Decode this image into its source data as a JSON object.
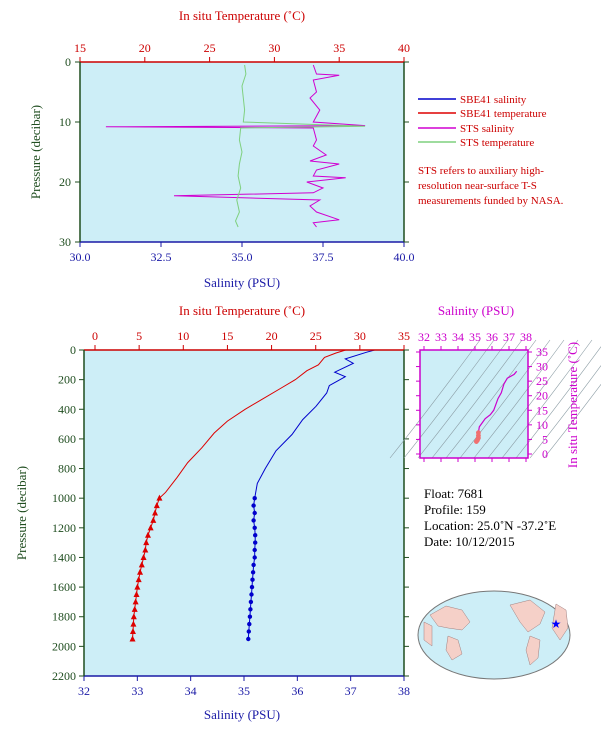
{
  "colors": {
    "plot_bg": "#cdeef7",
    "temperature_axis": "#cc0000",
    "salinity_axis": "#1a1aa6",
    "pressure_axis": "#1f4d1f",
    "sbe41_salinity": "#0000cc",
    "sbe41_temperature": "#dd0000",
    "sts_salinity": "#d000d0",
    "sts_temperature": "#7fd07f",
    "ts_axis": "#cc00cc"
  },
  "top_panel": {
    "temp_title": "In situ Temperature (˚C)",
    "sal_title": "Salinity (PSU)",
    "pres_title": "Pressure (decibar)",
    "temp_ticks": [
      "15",
      "20",
      "25",
      "30",
      "35",
      "40"
    ],
    "sal_ticks": [
      "30.0",
      "32.5",
      "35.0",
      "37.5",
      "40.0"
    ],
    "pres_ticks": [
      "0",
      "10",
      "20",
      "30"
    ],
    "legend": [
      {
        "label": "SBE41 salinity",
        "color": "#0000cc"
      },
      {
        "label": "SBE41 temperature",
        "color": "#dd0000"
      },
      {
        "label": "STS salinity",
        "color": "#d000d0"
      },
      {
        "label": "STS temperature",
        "color": "#7fd07f"
      }
    ],
    "note": "STS refers to auxiliary high-resolution near-surface T-S measurements funded by NASA."
  },
  "bottom_panel": {
    "temp_title": "In situ Temperature (˚C)",
    "sal_title": "Salinity (PSU)",
    "pres_title": "Pressure (decibar)",
    "temp_ticks": [
      "0",
      "5",
      "10",
      "15",
      "20",
      "25",
      "30",
      "35"
    ],
    "sal_ticks": [
      "32",
      "33",
      "34",
      "35",
      "36",
      "37",
      "38"
    ],
    "pres_ticks": [
      "0",
      "200",
      "400",
      "600",
      "800",
      "1000",
      "1200",
      "1400",
      "1600",
      "1800",
      "2000",
      "2200"
    ]
  },
  "ts_panel": {
    "sal_title": "Salinity (PSU)",
    "temp_title": "In situ Temperature (˚C)",
    "sal_ticks": [
      "32",
      "33",
      "34",
      "35",
      "36",
      "37",
      "38"
    ],
    "temp_ticks": [
      "0",
      "5",
      "10",
      "15",
      "20",
      "25",
      "30",
      "35"
    ]
  },
  "info": {
    "float": "Float:  7681",
    "profile": "Profile:  159",
    "location": "Location:  25.0˚N  -37.2˚E",
    "date": "Date:  10/12/2015"
  },
  "chart_data": [
    {
      "type": "line",
      "panel": "near-surface profile (0-30 dbar)",
      "ylabel": "Pressure (decibar)",
      "ylim": [
        30,
        0
      ],
      "x_top_label": "In situ Temperature (˚C)",
      "x_top_lim": [
        15,
        40
      ],
      "x_bottom_label": "Salinity (PSU)",
      "x_bottom_lim": [
        30.0,
        40.0
      ],
      "series": [
        {
          "name": "STS salinity",
          "axis": "salinity",
          "points": [
            [
              37.2,
              0.5
            ],
            [
              37.3,
              2
            ],
            [
              38.0,
              2.2
            ],
            [
              37.2,
              3
            ],
            [
              37.3,
              5
            ],
            [
              37.1,
              6
            ],
            [
              37.4,
              8
            ],
            [
              37.2,
              10
            ],
            [
              38.8,
              10.6
            ],
            [
              30.8,
              10.8
            ],
            [
              37.2,
              11
            ],
            [
              37.3,
              13
            ],
            [
              37.2,
              14
            ],
            [
              37.6,
              15.5
            ],
            [
              37.1,
              16.5
            ],
            [
              38.0,
              17
            ],
            [
              37.3,
              18
            ],
            [
              37.2,
              19
            ],
            [
              38.2,
              19.3
            ],
            [
              37.0,
              20
            ],
            [
              37.5,
              21
            ],
            [
              37.2,
              21.8
            ],
            [
              32.9,
              22.3
            ],
            [
              37.4,
              23
            ],
            [
              37.1,
              24
            ],
            [
              37.3,
              25
            ],
            [
              38.0,
              26.3
            ],
            [
              37.2,
              26.8
            ],
            [
              37.3,
              27.5
            ]
          ]
        },
        {
          "name": "STS temperature",
          "axis": "temperature",
          "points": [
            [
              27.7,
              0.5
            ],
            [
              27.8,
              2
            ],
            [
              27.5,
              4
            ],
            [
              27.6,
              6
            ],
            [
              27.7,
              8
            ],
            [
              27.6,
              10
            ],
            [
              37.0,
              10.7
            ],
            [
              27.4,
              11
            ],
            [
              27.3,
              13
            ],
            [
              27.5,
              15
            ],
            [
              27.3,
              17
            ],
            [
              27.2,
              19
            ],
            [
              27.4,
              21
            ],
            [
              27.1,
              23
            ],
            [
              27.3,
              25
            ],
            [
              27.0,
              26.5
            ],
            [
              27.2,
              27.5
            ]
          ]
        }
      ]
    },
    {
      "type": "line",
      "panel": "full-depth profile (0-2200 dbar)",
      "ylabel": "Pressure (decibar)",
      "ylim": [
        2200,
        0
      ],
      "x_top_label": "In situ Temperature (˚C)",
      "x_top_lim": [
        0,
        35
      ],
      "x_bottom_label": "Salinity (PSU)",
      "x_bottom_lim": [
        32,
        38
      ],
      "series": [
        {
          "name": "SBE41 salinity",
          "axis": "salinity",
          "marker": "circle",
          "points": [
            [
              37.45,
              0
            ],
            [
              37.3,
              15
            ],
            [
              36.9,
              60
            ],
            [
              37.05,
              90
            ],
            [
              36.7,
              150
            ],
            [
              36.9,
              180
            ],
            [
              36.6,
              240
            ],
            [
              36.55,
              290
            ],
            [
              36.35,
              380
            ],
            [
              36.1,
              470
            ],
            [
              35.9,
              570
            ],
            [
              35.6,
              680
            ],
            [
              35.4,
              800
            ],
            [
              35.25,
              900
            ],
            [
              35.2,
              1000
            ],
            [
              35.18,
              1050
            ],
            [
              35.2,
              1100
            ],
            [
              35.18,
              1150
            ],
            [
              35.2,
              1200
            ],
            [
              35.21,
              1250
            ],
            [
              35.21,
              1300
            ],
            [
              35.2,
              1350
            ],
            [
              35.2,
              1400
            ],
            [
              35.18,
              1450
            ],
            [
              35.17,
              1500
            ],
            [
              35.16,
              1550
            ],
            [
              35.15,
              1600
            ],
            [
              35.14,
              1650
            ],
            [
              35.13,
              1700
            ],
            [
              35.12,
              1750
            ],
            [
              35.11,
              1800
            ],
            [
              35.1,
              1850
            ],
            [
              35.09,
              1900
            ],
            [
              35.08,
              1950
            ]
          ]
        },
        {
          "name": "SBE41 temperature",
          "axis": "temperature",
          "marker": "triangle",
          "points": [
            [
              28.4,
              0
            ],
            [
              27.3,
              20
            ],
            [
              26.0,
              50
            ],
            [
              25.3,
              100
            ],
            [
              24.0,
              140
            ],
            [
              22.7,
              200
            ],
            [
              21.0,
              260
            ],
            [
              19.0,
              330
            ],
            [
              17.0,
              400
            ],
            [
              15.0,
              480
            ],
            [
              13.5,
              560
            ],
            [
              12.1,
              660
            ],
            [
              10.5,
              760
            ],
            [
              9.3,
              860
            ],
            [
              8.0,
              960
            ],
            [
              7.3,
              1000
            ],
            [
              7.0,
              1050
            ],
            [
              6.8,
              1100
            ],
            [
              6.6,
              1150
            ],
            [
              6.3,
              1200
            ],
            [
              6.0,
              1250
            ],
            [
              5.8,
              1300
            ],
            [
              5.7,
              1350
            ],
            [
              5.5,
              1400
            ],
            [
              5.3,
              1450
            ],
            [
              5.1,
              1500
            ],
            [
              4.95,
              1550
            ],
            [
              4.8,
              1600
            ],
            [
              4.7,
              1650
            ],
            [
              4.6,
              1700
            ],
            [
              4.5,
              1750
            ],
            [
              4.4,
              1800
            ],
            [
              4.35,
              1850
            ],
            [
              4.3,
              1900
            ],
            [
              4.25,
              1950
            ]
          ]
        }
      ]
    },
    {
      "type": "line",
      "panel": "T-S diagram",
      "xlabel": "Salinity (PSU)",
      "ylabel": "In situ Temperature (˚C)",
      "xlim": [
        32,
        38
      ],
      "ylim": [
        0,
        35
      ],
      "series": [
        {
          "name": "T-S",
          "points": [
            [
              37.45,
              28.4
            ],
            [
              37.3,
              27.3
            ],
            [
              36.9,
              26.0
            ],
            [
              36.7,
              24.0
            ],
            [
              36.55,
              21.0
            ],
            [
              36.35,
              19.0
            ],
            [
              36.1,
              15.0
            ],
            [
              35.9,
              13.5
            ],
            [
              35.6,
              12.1
            ],
            [
              35.4,
              10.5
            ],
            [
              35.25,
              9.3
            ],
            [
              35.2,
              7.3
            ],
            [
              35.2,
              6.3
            ],
            [
              35.2,
              5.5
            ],
            [
              35.15,
              4.8
            ],
            [
              35.08,
              4.25
            ]
          ]
        }
      ]
    }
  ]
}
